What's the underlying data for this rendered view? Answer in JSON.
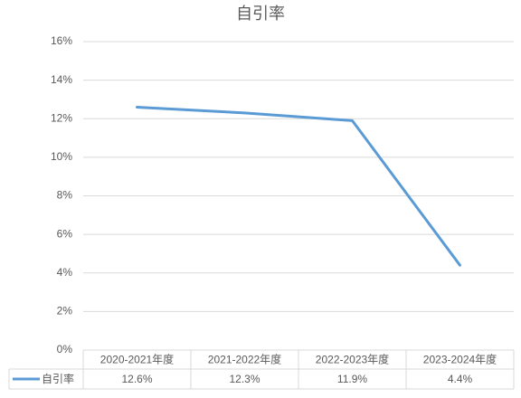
{
  "chart_data": {
    "type": "line",
    "title": "自引率",
    "categories": [
      "2020-2021年度",
      "2021-2022年度",
      "2022-2023年度",
      "2023-2024年度"
    ],
    "series": [
      {
        "name": "自引率",
        "color": "#5b9bd5",
        "values": [
          12.6,
          12.3,
          11.9,
          4.4
        ],
        "value_labels": [
          "12.6%",
          "12.3%",
          "11.9%",
          "4.4%"
        ]
      }
    ],
    "ylim": [
      0,
      16
    ],
    "yticks": [
      {
        "value": 0,
        "label": "0%"
      },
      {
        "value": 2,
        "label": "2%"
      },
      {
        "value": 4,
        "label": "4%"
      },
      {
        "value": 6,
        "label": "6%"
      },
      {
        "value": 8,
        "label": "8%"
      },
      {
        "value": 10,
        "label": "10%"
      },
      {
        "value": 12,
        "label": "12%"
      },
      {
        "value": 14,
        "label": "14%"
      },
      {
        "value": 16,
        "label": "16%"
      }
    ],
    "grid": true
  }
}
